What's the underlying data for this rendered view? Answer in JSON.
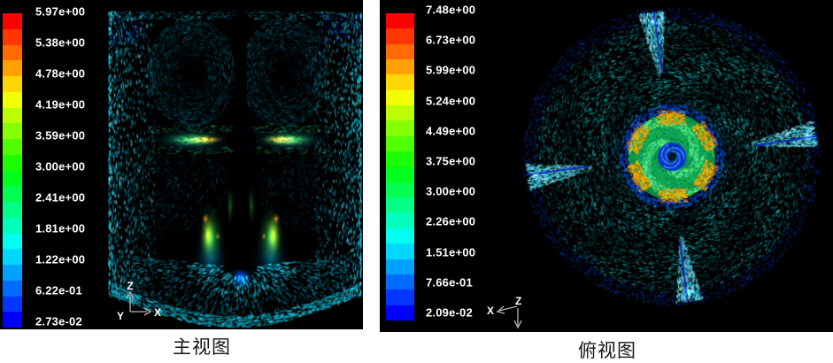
{
  "meta": {
    "background": "#ffffff",
    "panel_background": "#000000",
    "legend_text_color": "#ffffff",
    "caption_text_color": "#161616"
  },
  "colormap": {
    "description": "rainbow blue-to-red, 20 discrete bands",
    "bands_top_to_bottom": [
      "#ff0000",
      "#ff3600",
      "#ff6b00",
      "#ffa100",
      "#ffd700",
      "#f1ff00",
      "#bcff00",
      "#86ff00",
      "#50ff00",
      "#1bff00",
      "#00ff1b",
      "#00ff50",
      "#00ff86",
      "#00ffbc",
      "#00fff1",
      "#00d7ff",
      "#00a1ff",
      "#006bff",
      "#0036ff",
      "#0000ff"
    ]
  },
  "front_view": {
    "caption": "主视图",
    "legend_labels": [
      "5.97e+00",
      "5.38e+00",
      "4.78e+00",
      "4.19e+00",
      "3.59e+00",
      "3.00e+00",
      "2.41e+00",
      "1.81e+00",
      "1.22e+00",
      "6.22e-01",
      "2.73e-02"
    ],
    "axes": {
      "z": "Z",
      "x": "X",
      "y": "Y"
    }
  },
  "top_view": {
    "caption": "俯视图",
    "legend_labels": [
      "7.48e+00",
      "6.73e+00",
      "5.99e+00",
      "5.24e+00",
      "4.49e+00",
      "3.75e+00",
      "3.00e+00",
      "2.26e+00",
      "1.51e+00",
      "7.66e-01",
      "2.09e-02"
    ],
    "axes": {
      "x": "X",
      "z": "Z"
    }
  },
  "chart_data": [
    {
      "type": "heatmap",
      "subtype": "velocity-vector-field",
      "title": "主视图",
      "legend_tick_labels": [
        "5.97e+00",
        "5.38e+00",
        "4.78e+00",
        "4.19e+00",
        "3.59e+00",
        "3.00e+00",
        "2.41e+00",
        "1.81e+00",
        "1.22e+00",
        "6.22e-01",
        "2.73e-02"
      ],
      "legend_tick_values": [
        5.97,
        5.38,
        4.78,
        4.19,
        3.59,
        3.0,
        2.41,
        1.81,
        1.22,
        0.622,
        0.0273
      ],
      "value_range": [
        0.0273,
        5.97
      ],
      "colorbar_bands": 20,
      "colormap": "rainbow (red=high, blue=low)",
      "axes_triad_labels": [
        "Z",
        "Y",
        "X"
      ],
      "legend_position": "left",
      "content": "stirred-tank front view: cyan vectors along walls, two red/yellow radial impeller jets at mid-height beside the black central shaft, two green/yellow plumes below the shaft tip, dark recirculation loops above the jets"
    },
    {
      "type": "heatmap",
      "subtype": "velocity-vector-field",
      "title": "俯视图",
      "legend_tick_labels": [
        "7.48e+00",
        "6.73e+00",
        "5.99e+00",
        "5.24e+00",
        "4.49e+00",
        "3.75e+00",
        "3.00e+00",
        "2.26e+00",
        "1.51e+00",
        "7.66e-01",
        "2.09e-02"
      ],
      "legend_tick_values": [
        7.48,
        6.73,
        5.99,
        5.24,
        4.49,
        3.75,
        3.0,
        2.26,
        1.51,
        0.766,
        0.0209
      ],
      "value_range": [
        0.0209,
        7.48
      ],
      "colorbar_bands": 20,
      "colormap": "rainbow (red=high, blue=low)",
      "axes_triad_labels": [
        "X",
        "Z"
      ],
      "legend_position": "left",
      "content": "stirred-tank top view: circular vessel with tangential cyan/teal swirl vectors, four bright cyan baffle streaks at the rim, central impeller disk of green spiral with orange/yellow rim lobes and blue vortex core"
    }
  ]
}
